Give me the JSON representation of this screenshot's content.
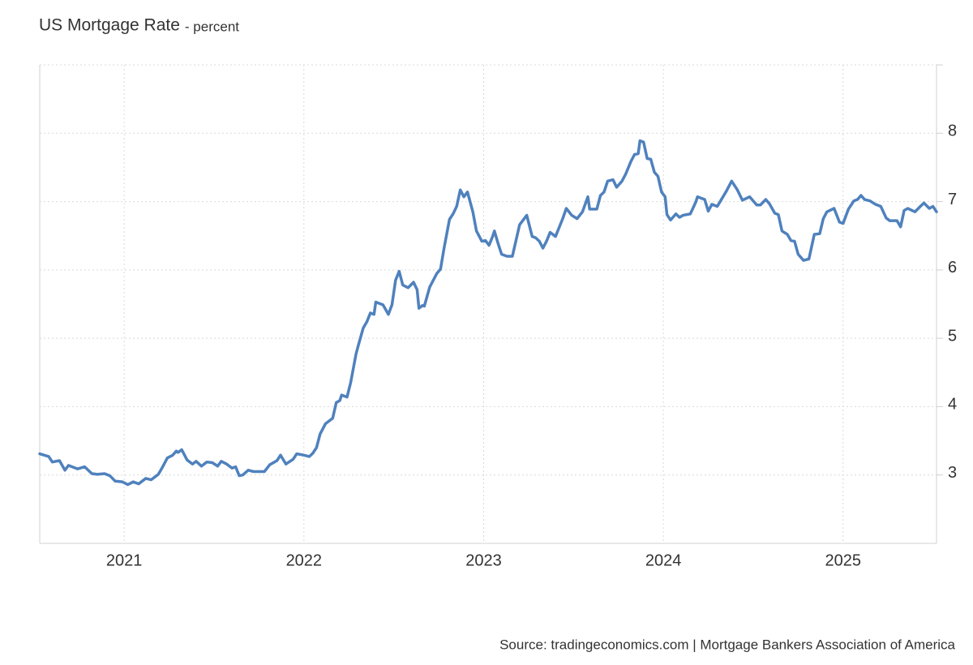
{
  "chart_data": {
    "type": "line",
    "title": "US Mortgage Rate",
    "subtitle": "- percent",
    "source": "Source: tradingeconomics.com | Mortgage Bankers Association of America",
    "xlim": [
      2020.53,
      2025.52
    ],
    "xticks": [
      2021,
      2022,
      2023,
      2024,
      2025
    ],
    "ylim": [
      2,
      9
    ],
    "yticks": [
      3,
      4,
      5,
      6,
      7,
      8
    ],
    "grid": true,
    "x": [
      2020.53,
      2020.58,
      2020.6,
      2020.64,
      2020.67,
      2020.69,
      2020.74,
      2020.78,
      2020.82,
      2020.85,
      2020.89,
      2020.92,
      2020.95,
      2020.99,
      2021.02,
      2021.05,
      2021.08,
      2021.12,
      2021.15,
      2021.19,
      2021.21,
      2021.24,
      2021.27,
      2021.29,
      2021.3,
      2021.32,
      2021.35,
      2021.38,
      2021.4,
      2021.43,
      2021.46,
      2021.49,
      2021.52,
      2021.54,
      2021.57,
      2021.6,
      2021.62,
      2021.64,
      2021.66,
      2021.69,
      2021.72,
      2021.78,
      2021.81,
      2021.85,
      2021.87,
      2021.9,
      2021.94,
      2021.96,
      2022.0,
      2022.03,
      2022.05,
      2022.07,
      2022.09,
      2022.12,
      2022.16,
      2022.18,
      2022.2,
      2022.21,
      2022.24,
      2022.26,
      2022.29,
      2022.3,
      2022.33,
      2022.35,
      2022.37,
      2022.39,
      2022.4,
      2022.44,
      2022.47,
      2022.49,
      2022.51,
      2022.53,
      2022.55,
      2022.58,
      2022.61,
      2022.63,
      2022.64,
      2022.66,
      2022.67,
      2022.7,
      2022.74,
      2022.76,
      2022.78,
      2022.81,
      2022.83,
      2022.85,
      2022.87,
      2022.89,
      2022.91,
      2022.94,
      2022.96,
      2022.99,
      2023.01,
      2023.03,
      2023.05,
      2023.06,
      2023.08,
      2023.1,
      2023.13,
      2023.16,
      2023.2,
      2023.22,
      2023.24,
      2023.27,
      2023.29,
      2023.31,
      2023.33,
      2023.35,
      2023.37,
      2023.4,
      2023.42,
      2023.44,
      2023.46,
      2023.49,
      2023.52,
      2023.55,
      2023.58,
      2023.59,
      2023.63,
      2023.65,
      2023.67,
      2023.69,
      2023.72,
      2023.74,
      2023.77,
      2023.79,
      2023.82,
      2023.84,
      2023.86,
      2023.87,
      2023.89,
      2023.91,
      2023.93,
      2023.95,
      2023.97,
      2023.99,
      2024.01,
      2024.02,
      2024.04,
      2024.07,
      2024.09,
      2024.11,
      2024.15,
      2024.18,
      2024.19,
      2024.23,
      2024.25,
      2024.27,
      2024.3,
      2024.35,
      2024.38,
      2024.41,
      2024.44,
      2024.48,
      2024.52,
      2024.54,
      2024.57,
      2024.59,
      2024.62,
      2024.64,
      2024.66,
      2024.69,
      2024.71,
      2024.73,
      2024.75,
      2024.78,
      2024.81,
      2024.84,
      2024.87,
      2024.89,
      2024.91,
      2024.95,
      2024.98,
      2025.0,
      2025.03,
      2025.06,
      2025.08,
      2025.1,
      2025.12,
      2025.15,
      2025.18,
      2025.21,
      2025.24,
      2025.26,
      2025.3,
      2025.32,
      2025.34,
      2025.36,
      2025.4,
      2025.43,
      2025.45,
      2025.48,
      2025.5,
      2025.52
    ],
    "series": [
      {
        "name": "US Mortgage Rate",
        "color": "#4f81bd",
        "values": [
          3.31,
          3.27,
          3.19,
          3.21,
          3.07,
          3.14,
          3.09,
          3.12,
          3.02,
          3.01,
          3.02,
          2.99,
          2.91,
          2.9,
          2.86,
          2.9,
          2.87,
          2.95,
          2.93,
          3.01,
          3.1,
          3.25,
          3.29,
          3.35,
          3.33,
          3.37,
          3.22,
          3.16,
          3.2,
          3.13,
          3.19,
          3.18,
          3.13,
          3.2,
          3.16,
          3.1,
          3.12,
          2.99,
          3.0,
          3.07,
          3.05,
          3.05,
          3.15,
          3.21,
          3.29,
          3.16,
          3.23,
          3.31,
          3.29,
          3.27,
          3.32,
          3.4,
          3.6,
          3.75,
          3.83,
          4.06,
          4.09,
          4.17,
          4.14,
          4.35,
          4.77,
          4.87,
          5.15,
          5.24,
          5.37,
          5.35,
          5.53,
          5.49,
          5.35,
          5.49,
          5.85,
          5.98,
          5.78,
          5.74,
          5.82,
          5.71,
          5.44,
          5.48,
          5.47,
          5.75,
          5.95,
          6.01,
          6.32,
          6.74,
          6.82,
          6.93,
          7.17,
          7.07,
          7.14,
          6.85,
          6.57,
          6.42,
          6.43,
          6.36,
          6.49,
          6.57,
          6.39,
          6.23,
          6.2,
          6.2,
          6.66,
          6.73,
          6.8,
          6.49,
          6.47,
          6.42,
          6.32,
          6.42,
          6.55,
          6.49,
          6.62,
          6.75,
          6.9,
          6.8,
          6.75,
          6.85,
          7.07,
          6.89,
          6.89,
          7.09,
          7.14,
          7.3,
          7.32,
          7.21,
          7.3,
          7.4,
          7.59,
          7.69,
          7.7,
          7.89,
          7.87,
          7.63,
          7.62,
          7.43,
          7.37,
          7.14,
          7.07,
          6.81,
          6.73,
          6.82,
          6.77,
          6.8,
          6.82,
          6.99,
          7.07,
          7.03,
          6.86,
          6.96,
          6.93,
          7.15,
          7.3,
          7.18,
          7.02,
          7.07,
          6.95,
          6.95,
          7.03,
          6.97,
          6.83,
          6.81,
          6.57,
          6.52,
          6.43,
          6.42,
          6.23,
          6.14,
          6.16,
          6.52,
          6.53,
          6.75,
          6.85,
          6.9,
          6.7,
          6.68,
          6.89,
          7.01,
          7.03,
          7.09,
          7.03,
          7.01,
          6.96,
          6.93,
          6.76,
          6.72,
          6.72,
          6.63,
          6.87,
          6.9,
          6.85,
          6.93,
          6.98,
          6.9,
          6.93,
          6.85
        ]
      }
    ]
  }
}
